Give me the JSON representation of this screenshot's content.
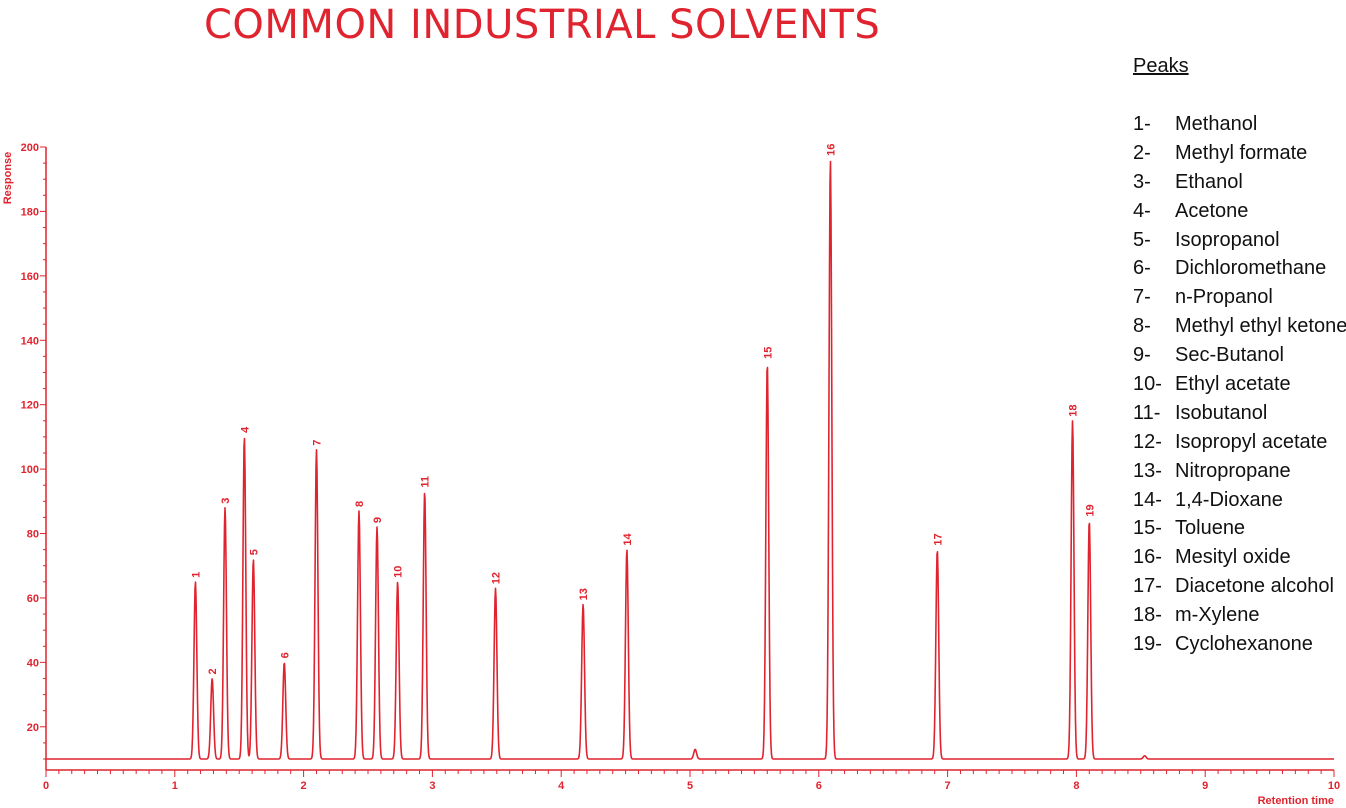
{
  "title": "COMMON INDUSTRIAL SOLVENTS",
  "legend": {
    "title": "Peaks",
    "items": [
      {
        "num": "1-",
        "name": "Methanol"
      },
      {
        "num": "2-",
        "name": "Methyl formate"
      },
      {
        "num": "3-",
        "name": "Ethanol"
      },
      {
        "num": "4-",
        "name": "Acetone"
      },
      {
        "num": "5-",
        "name": "Isopropanol"
      },
      {
        "num": "6-",
        "name": "Dichloromethane"
      },
      {
        "num": "7-",
        "name": "n-Propanol"
      },
      {
        "num": "8-",
        "name": "Methyl ethyl ketone"
      },
      {
        "num": "9-",
        "name": "Sec-Butanol"
      },
      {
        "num": "10-",
        "name": "Ethyl acetate"
      },
      {
        "num": "11-",
        "name": "Isobutanol"
      },
      {
        "num": "12-",
        "name": "Isopropyl acetate"
      },
      {
        "num": "13-",
        "name": "Nitropropane"
      },
      {
        "num": "14-",
        "name": "1,4-Dioxane"
      },
      {
        "num": "15-",
        "name": "Toluene"
      },
      {
        "num": "16-",
        "name": "Mesityl oxide"
      },
      {
        "num": "17-",
        "name": "Diacetone alcohol"
      },
      {
        "num": "18-",
        "name": "m-Xylene"
      },
      {
        "num": "19-",
        "name": "Cyclohexanone"
      }
    ]
  },
  "chart_data": {
    "type": "line",
    "title": "COMMON INDUSTRIAL SOLVENTS",
    "xlabel": "Retention time",
    "ylabel": "Response",
    "xlim": [
      0,
      10
    ],
    "ylim": [
      10,
      200
    ],
    "x_ticks": [
      "0",
      "1",
      "2",
      "3",
      "4",
      "5",
      "6",
      "7",
      "8",
      "9",
      "10"
    ],
    "y_ticks": [
      "20",
      "40",
      "60",
      "80",
      "100",
      "120",
      "140",
      "160",
      "180",
      "200"
    ],
    "baseline": 10,
    "color": "#e0242f",
    "peaks": [
      {
        "label": "1",
        "rt": 1.16,
        "height": 65
      },
      {
        "label": "2",
        "rt": 1.29,
        "height": 35
      },
      {
        "label": "3",
        "rt": 1.39,
        "height": 88
      },
      {
        "label": "4",
        "rt": 1.54,
        "height": 110
      },
      {
        "label": "5",
        "rt": 1.61,
        "height": 72
      },
      {
        "label": "6",
        "rt": 1.85,
        "height": 40
      },
      {
        "label": "7",
        "rt": 2.1,
        "height": 106
      },
      {
        "label": "8",
        "rt": 2.43,
        "height": 87
      },
      {
        "label": "9",
        "rt": 2.57,
        "height": 82
      },
      {
        "label": "10",
        "rt": 2.73,
        "height": 65
      },
      {
        "label": "11",
        "rt": 2.94,
        "height": 93
      },
      {
        "label": "12",
        "rt": 3.49,
        "height": 63
      },
      {
        "label": "13",
        "rt": 4.17,
        "height": 58
      },
      {
        "label": "14",
        "rt": 4.51,
        "height": 75
      },
      {
        "label": "15",
        "rt": 5.6,
        "height": 133
      },
      {
        "label": "16",
        "rt": 6.09,
        "height": 196
      },
      {
        "label": "17",
        "rt": 6.92,
        "height": 75
      },
      {
        "label": "18",
        "rt": 7.97,
        "height": 115
      },
      {
        "label": "19",
        "rt": 8.1,
        "height": 84
      }
    ],
    "unlabeled_peaks": [
      {
        "rt": 5.04,
        "height": 13
      },
      {
        "rt": 8.53,
        "height": 11
      }
    ],
    "grid": false
  }
}
